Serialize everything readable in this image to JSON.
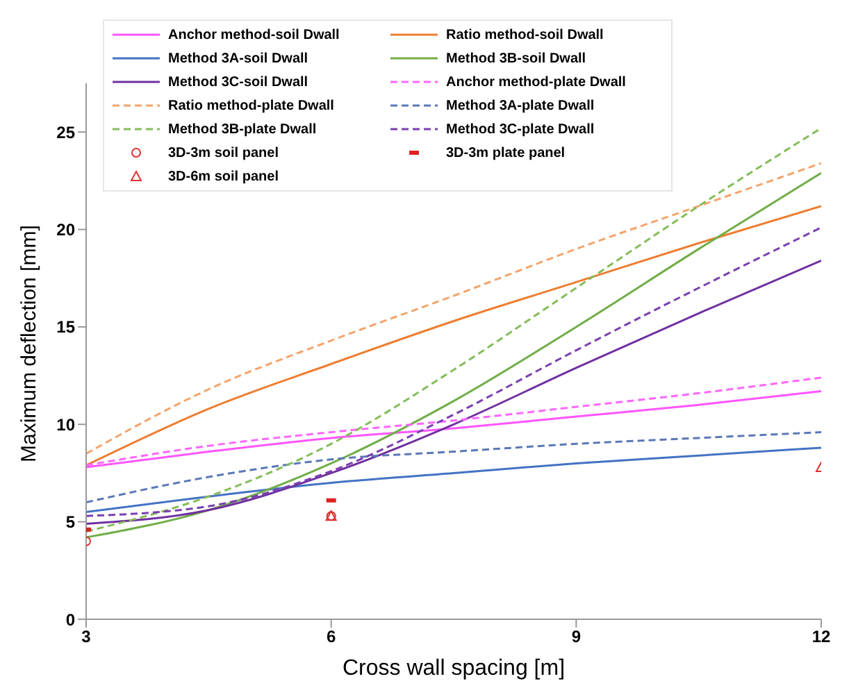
{
  "chart_data": {
    "type": "line",
    "xlabel": "Cross wall spacing [m]",
    "ylabel": "Maximum deflection [mm]",
    "xlim": [
      3,
      12
    ],
    "xticks": [
      3,
      6,
      9,
      12
    ],
    "ylim": [
      0,
      27.5
    ],
    "yticks": [
      0,
      5,
      10,
      15,
      20,
      25
    ],
    "grid": false,
    "legend": "top left",
    "series": [
      {
        "name": "Anchor method-soil Dwall",
        "color": "#ff55ff",
        "line_style": "solid",
        "marker": "none",
        "x": [
          3,
          4.5,
          6,
          7.5,
          9,
          10.5,
          12
        ],
        "values": [
          7.8,
          8.6,
          9.3,
          9.8,
          10.4,
          11.0,
          11.7
        ]
      },
      {
        "name": "Ratio method-soil Dwall",
        "color": "#ed7d31",
        "line_style": "solid",
        "marker": "none",
        "x": [
          3,
          4.5,
          6,
          7.5,
          9,
          10.5,
          12
        ],
        "values": [
          7.9,
          10.8,
          13.1,
          15.3,
          17.3,
          19.3,
          21.2
        ]
      },
      {
        "name": "Method 3A-soil Dwall",
        "color": "#4472c4",
        "line_style": "solid",
        "marker": "none",
        "x": [
          3,
          4.5,
          6,
          7.5,
          9,
          10.5,
          12
        ],
        "values": [
          5.5,
          6.3,
          7.0,
          7.5,
          8.0,
          8.4,
          8.8
        ]
      },
      {
        "name": "Method 3B-soil Dwall",
        "color": "#70ad47",
        "line_style": "solid",
        "marker": "none",
        "x": [
          3,
          4.5,
          6,
          7.5,
          9,
          10.5,
          12
        ],
        "values": [
          4.2,
          5.6,
          8.0,
          11.2,
          15.0,
          19.0,
          22.9
        ]
      },
      {
        "name": "Method 3C-soil Dwall",
        "color": "#7030a0",
        "line_style": "solid",
        "marker": "none",
        "x": [
          3,
          4.5,
          6,
          7.5,
          9,
          10.5,
          12
        ],
        "values": [
          4.9,
          5.6,
          7.5,
          10.0,
          12.9,
          15.7,
          18.4
        ]
      },
      {
        "name": "Anchor method-plate Dwall",
        "color": "#ff66ff",
        "line_style": "dashed",
        "marker": "none",
        "x": [
          3,
          4.5,
          6,
          7.5,
          9,
          10.5,
          12
        ],
        "values": [
          7.9,
          8.9,
          9.6,
          10.2,
          10.9,
          11.6,
          12.4
        ]
      },
      {
        "name": "Ratio method-plate Dwall",
        "color": "#f4a46a",
        "line_style": "dashed",
        "marker": "none",
        "x": [
          3,
          4.5,
          6,
          7.5,
          9,
          10.5,
          12
        ],
        "values": [
          8.5,
          11.8,
          14.3,
          16.6,
          19.0,
          21.2,
          23.4
        ]
      },
      {
        "name": "Method 3A-plate Dwall",
        "color": "#5a78b8",
        "line_style": "dashed",
        "marker": "none",
        "x": [
          3,
          4.5,
          6,
          7.5,
          9,
          10.5,
          12
        ],
        "values": [
          6.0,
          7.3,
          8.2,
          8.6,
          9.0,
          9.3,
          9.6
        ]
      },
      {
        "name": "Method 3B-plate Dwall",
        "color": "#84bc5a",
        "line_style": "dashed",
        "marker": "none",
        "x": [
          3,
          4.5,
          6,
          7.5,
          9,
          10.5,
          12
        ],
        "values": [
          4.5,
          6.3,
          9.0,
          12.8,
          17.0,
          21.2,
          25.2
        ]
      },
      {
        "name": "Method 3C-plate Dwall",
        "color": "#7a3fb0",
        "line_style": "dashed",
        "marker": "none",
        "x": [
          3,
          4.5,
          6,
          7.5,
          9,
          10.5,
          12
        ],
        "values": [
          5.3,
          5.8,
          7.6,
          10.5,
          13.8,
          17.0,
          20.1
        ]
      },
      {
        "name": "3D-3m soil panel",
        "type": "scatter",
        "marker": "circle",
        "color": "#e03030",
        "x": [
          3,
          6
        ],
        "values": [
          4.0,
          5.3
        ]
      },
      {
        "name": "3D-3m plate panel",
        "type": "scatter",
        "marker": "square",
        "color": "#e02020",
        "x": [
          3,
          6
        ],
        "values": [
          4.6,
          6.1
        ]
      },
      {
        "name": "3D-6m soil panel",
        "type": "scatter",
        "marker": "triangle",
        "color": "#e03030",
        "x": [
          6,
          12
        ],
        "values": [
          5.3,
          7.8
        ]
      }
    ]
  }
}
